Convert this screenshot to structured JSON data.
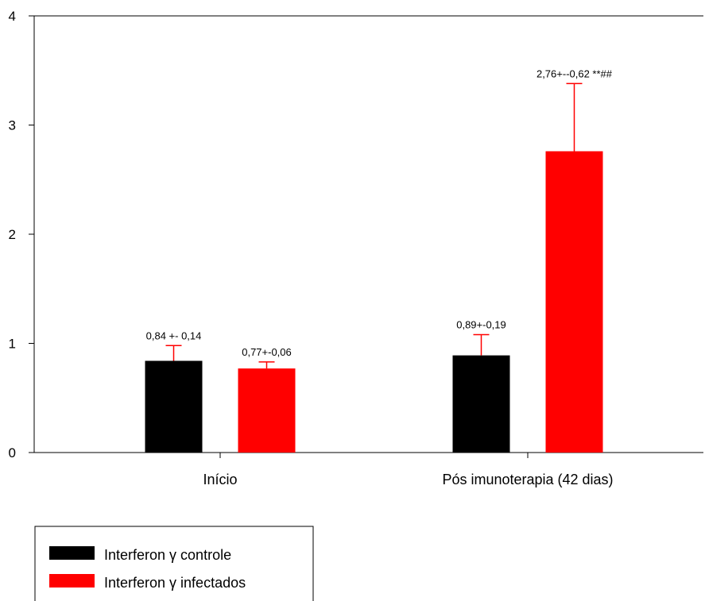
{
  "chart_data": {
    "type": "bar",
    "categories": [
      "Início",
      "Pós imunoterapia (42 dias)"
    ],
    "series": [
      {
        "name": "Interferon γ controle",
        "color": "#000000",
        "error_color": "#ff0000",
        "values": [
          0.84,
          0.89
        ],
        "errors": [
          0.14,
          0.19
        ],
        "labels": [
          "0,84 +- 0,14",
          "0,89+-0,19"
        ]
      },
      {
        "name": "Interferon γ infectados",
        "color": "#ff0000",
        "error_color": "#ff0000",
        "values": [
          0.77,
          2.76
        ],
        "errors": [
          0.06,
          0.62
        ],
        "labels": [
          "0,77+-0,06",
          "2,76+--0,62 **##"
        ]
      }
    ],
    "ylim": [
      0,
      4
    ],
    "yticks": [
      "0",
      "1",
      "2",
      "3",
      "4"
    ],
    "title": "",
    "xlabel": "",
    "ylabel": "",
    "grid": false,
    "legend_position": "bottom-left"
  }
}
